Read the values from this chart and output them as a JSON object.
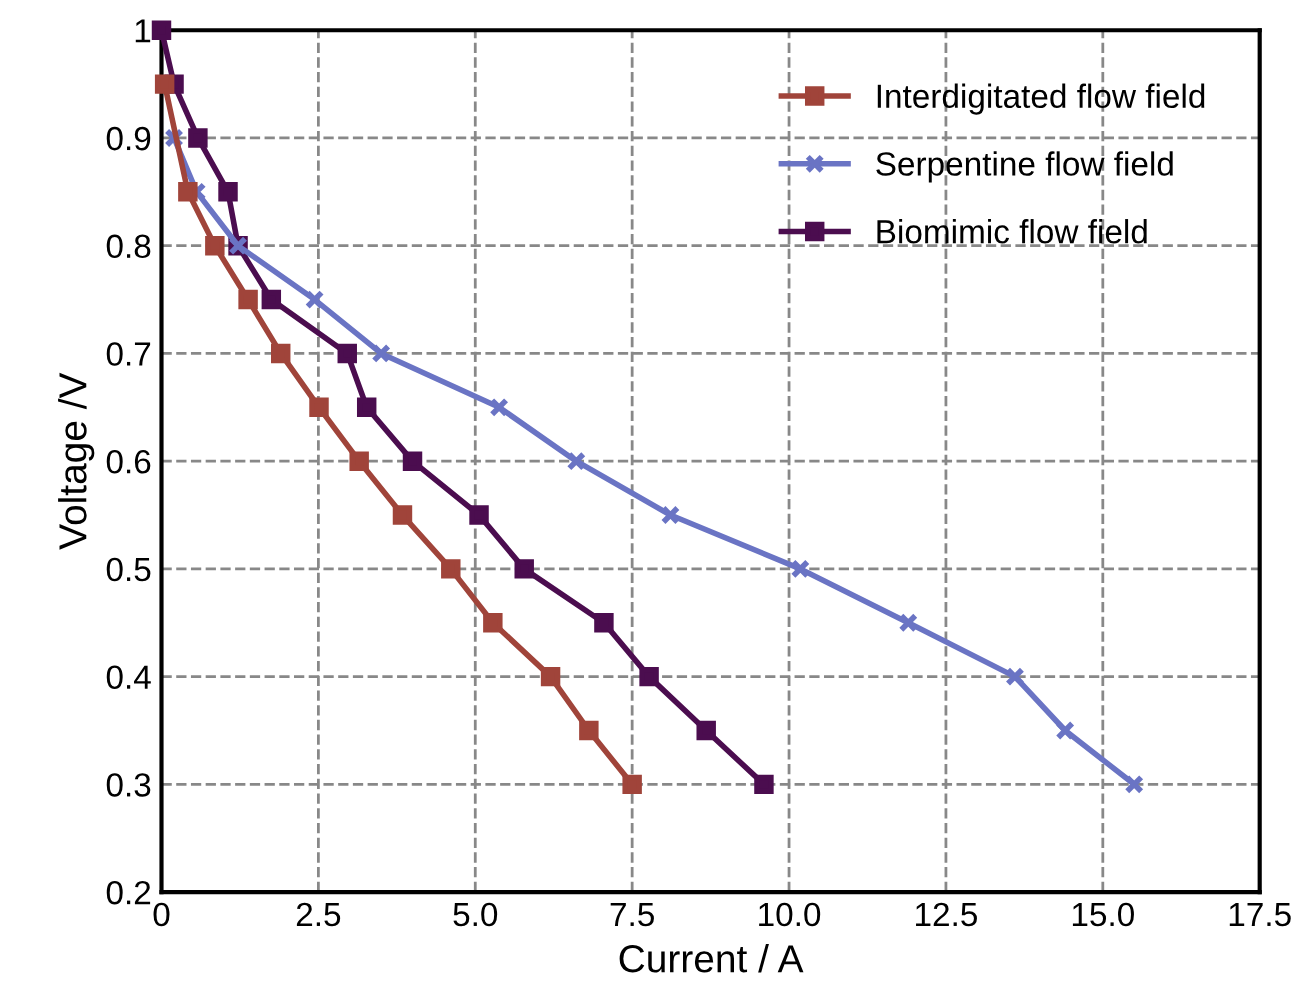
{
  "chart_data": {
    "type": "line",
    "xlabel": "Current / A",
    "ylabel": "Voltage /V",
    "xlim": [
      0,
      17.5
    ],
    "ylim": [
      0.2,
      1
    ],
    "xticks": [
      0,
      2.5,
      {
        "value": 5,
        "label": "5.0"
      },
      7.5,
      {
        "value": 10,
        "label": "10.0"
      },
      12.5,
      {
        "value": 15,
        "label": "15.0"
      },
      17.5
    ],
    "yticks": [
      0.2,
      0.3,
      0.4,
      0.5,
      0.6,
      0.7,
      0.8,
      0.9,
      1
    ],
    "grid": true,
    "legend": "top right",
    "series": [
      {
        "name": "Interdigitated flow field",
        "color": "#a0443a",
        "marker": "square",
        "x": [
          0.05,
          0.42,
          0.85,
          1.38,
          1.9,
          2.51,
          3.15,
          3.84,
          4.61,
          5.28,
          6.2,
          6.81,
          7.5
        ],
        "values": [
          0.95,
          0.85,
          0.8,
          0.75,
          0.7,
          0.65,
          0.6,
          0.55,
          0.5,
          0.45,
          0.4,
          0.35,
          0.3
        ]
      },
      {
        "name": "Serpentine flow field",
        "color": "#6a74c4",
        "marker": "cross",
        "x": [
          0.2,
          0.56,
          1.22,
          2.44,
          3.5,
          5.38,
          6.61,
          8.11,
          10.18,
          11.9,
          13.6,
          14.4,
          15.5
        ],
        "values": [
          0.9,
          0.85,
          0.8,
          0.75,
          0.7,
          0.65,
          0.6,
          0.55,
          0.5,
          0.45,
          0.4,
          0.35,
          0.3
        ]
      },
      {
        "name": "Biomimic flow field",
        "color": "#4b0d4f",
        "marker": "square",
        "x": [
          0,
          0.2,
          0.58,
          1.06,
          1.22,
          1.75,
          2.96,
          3.27,
          4.0,
          5.06,
          5.78,
          7.05,
          7.77,
          8.68,
          9.6
        ],
        "values": [
          1,
          0.95,
          0.9,
          0.85,
          0.8,
          0.75,
          0.7,
          0.65,
          0.6,
          0.55,
          0.5,
          0.45,
          0.4,
          0.35,
          0.3
        ]
      }
    ]
  }
}
